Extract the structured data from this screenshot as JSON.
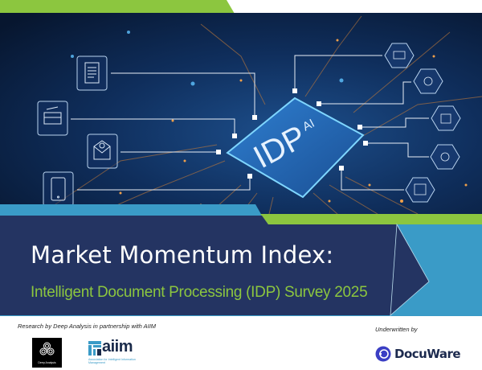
{
  "cover": {
    "chip_label_small": "AI",
    "chip_label_large": "IDP",
    "title": "Market Momentum Index:",
    "subtitle": "Intelligent Document Processing (IDP) Survey 2025"
  },
  "footer": {
    "research_credit": "Research by Deep Analysis in partnership with AIIM",
    "underwritten_label": "Underwritten by",
    "logos": {
      "deep_analysis": "Deep Analysis",
      "aiim_word": "aiim",
      "aiim_tagline": "Association for Intelligent Information Management",
      "docuware": "DocuWare"
    }
  },
  "colors": {
    "navy": "#243462",
    "green": "#8cc63f",
    "light_blue": "#3a9bc7",
    "circuit_dark": "#0b1f3f",
    "chip_glow": "#5fc3ff"
  },
  "icons": [
    "document-icon",
    "scanner-icon",
    "email-icon",
    "phone-icon",
    "workflow-icon",
    "cloud-gear-icon",
    "robot-icon",
    "gear-icon",
    "form-icon"
  ]
}
